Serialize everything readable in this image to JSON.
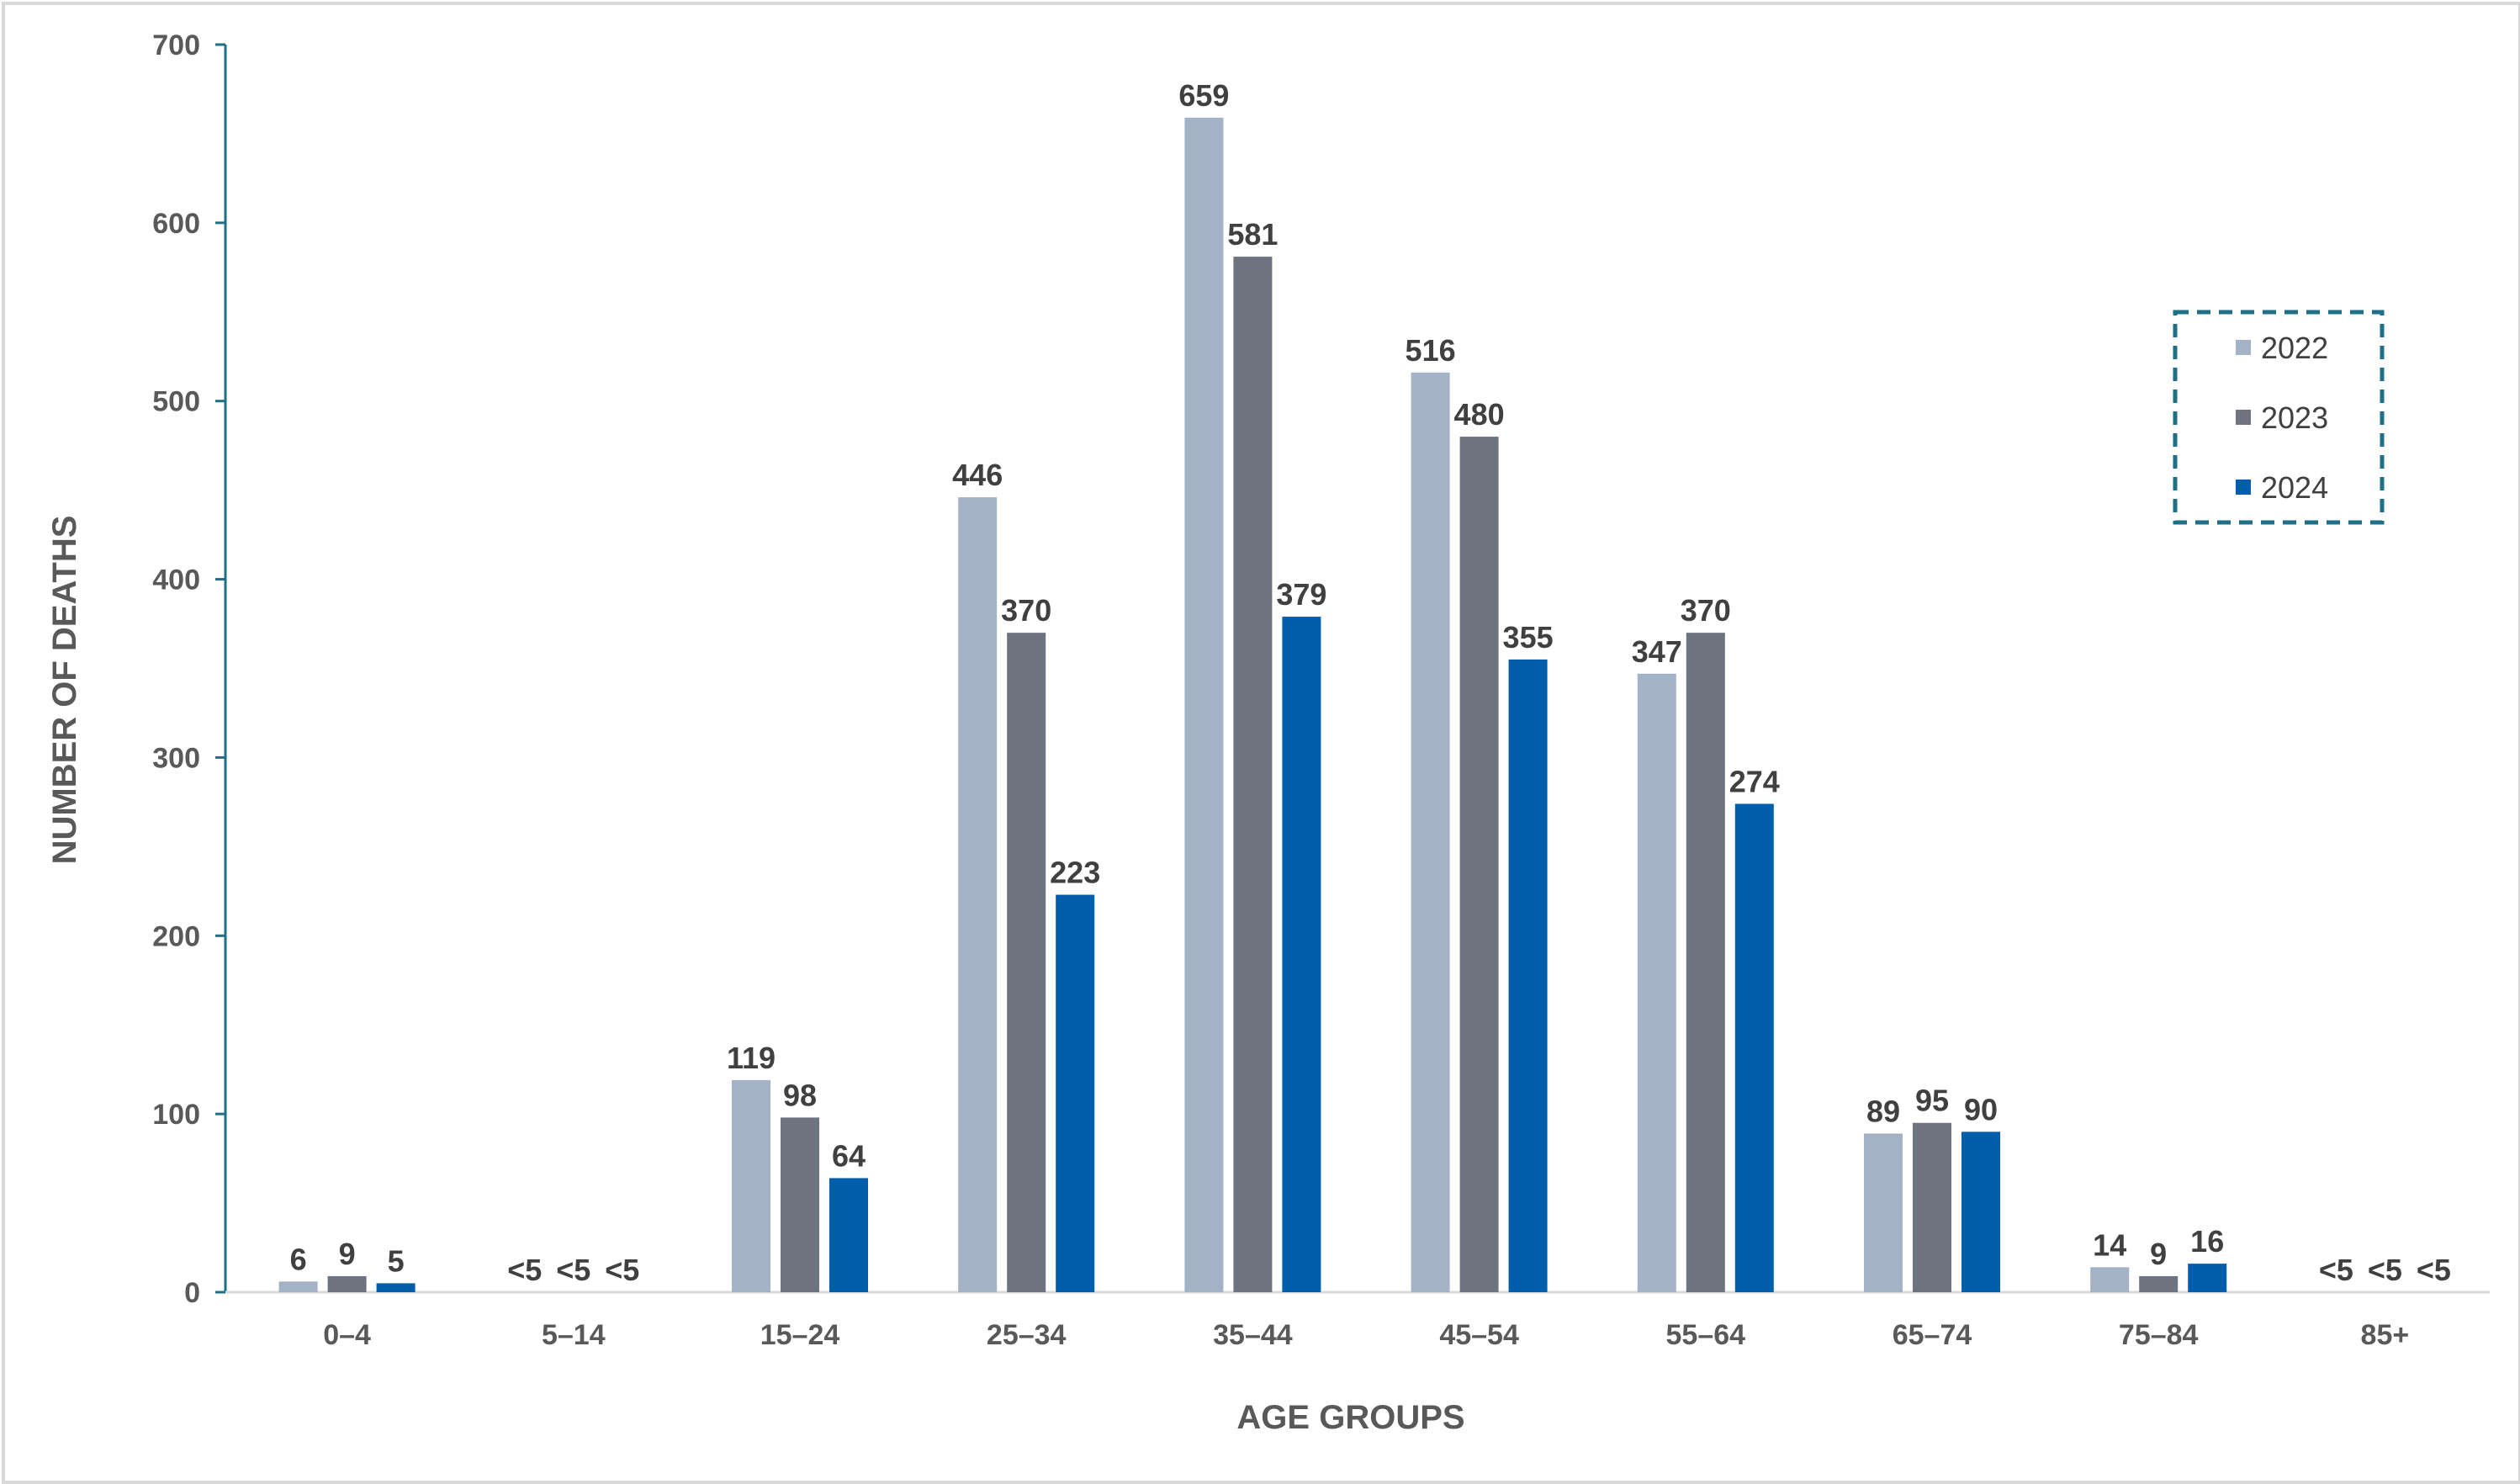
{
  "chart_data": {
    "type": "bar",
    "title": "",
    "xlabel": "AGE GROUPS",
    "ylabel": "NUMBER OF DEATHS",
    "ylim": [
      0,
      700
    ],
    "yticks": [
      0,
      100,
      200,
      300,
      400,
      500,
      600,
      700
    ],
    "grid": false,
    "legend_position": "right",
    "categories": [
      "0–4",
      "5–14",
      "15–24",
      "25–34",
      "35–44",
      "45–54",
      "55–64",
      "65–74",
      "75–84",
      "85+"
    ],
    "series": [
      {
        "name": "2022",
        "color": "#a3b2c7",
        "values": [
          6,
          null,
          119,
          446,
          659,
          516,
          347,
          89,
          14,
          null
        ],
        "labels": [
          "6",
          "<5",
          "119",
          "446",
          "659",
          "516",
          "347",
          "89",
          "14",
          "<5"
        ]
      },
      {
        "name": "2023",
        "color": "#6d7480",
        "values": [
          9,
          null,
          98,
          370,
          581,
          480,
          370,
          95,
          9,
          null
        ],
        "labels": [
          "9",
          "<5",
          "98",
          "370",
          "581",
          "480",
          "370",
          "95",
          "9",
          "<5"
        ]
      },
      {
        "name": "2024",
        "color": "#005eac",
        "values": [
          5,
          null,
          64,
          223,
          379,
          355,
          274,
          90,
          16,
          null
        ],
        "labels": [
          "5",
          "<5",
          "64",
          "223",
          "379",
          "355",
          "274",
          "90",
          "16",
          "<5"
        ]
      }
    ],
    "colors": {
      "axis": "#1f6f86",
      "baseline": "#d9d9d9",
      "legend_border": "#1f6f86"
    }
  }
}
